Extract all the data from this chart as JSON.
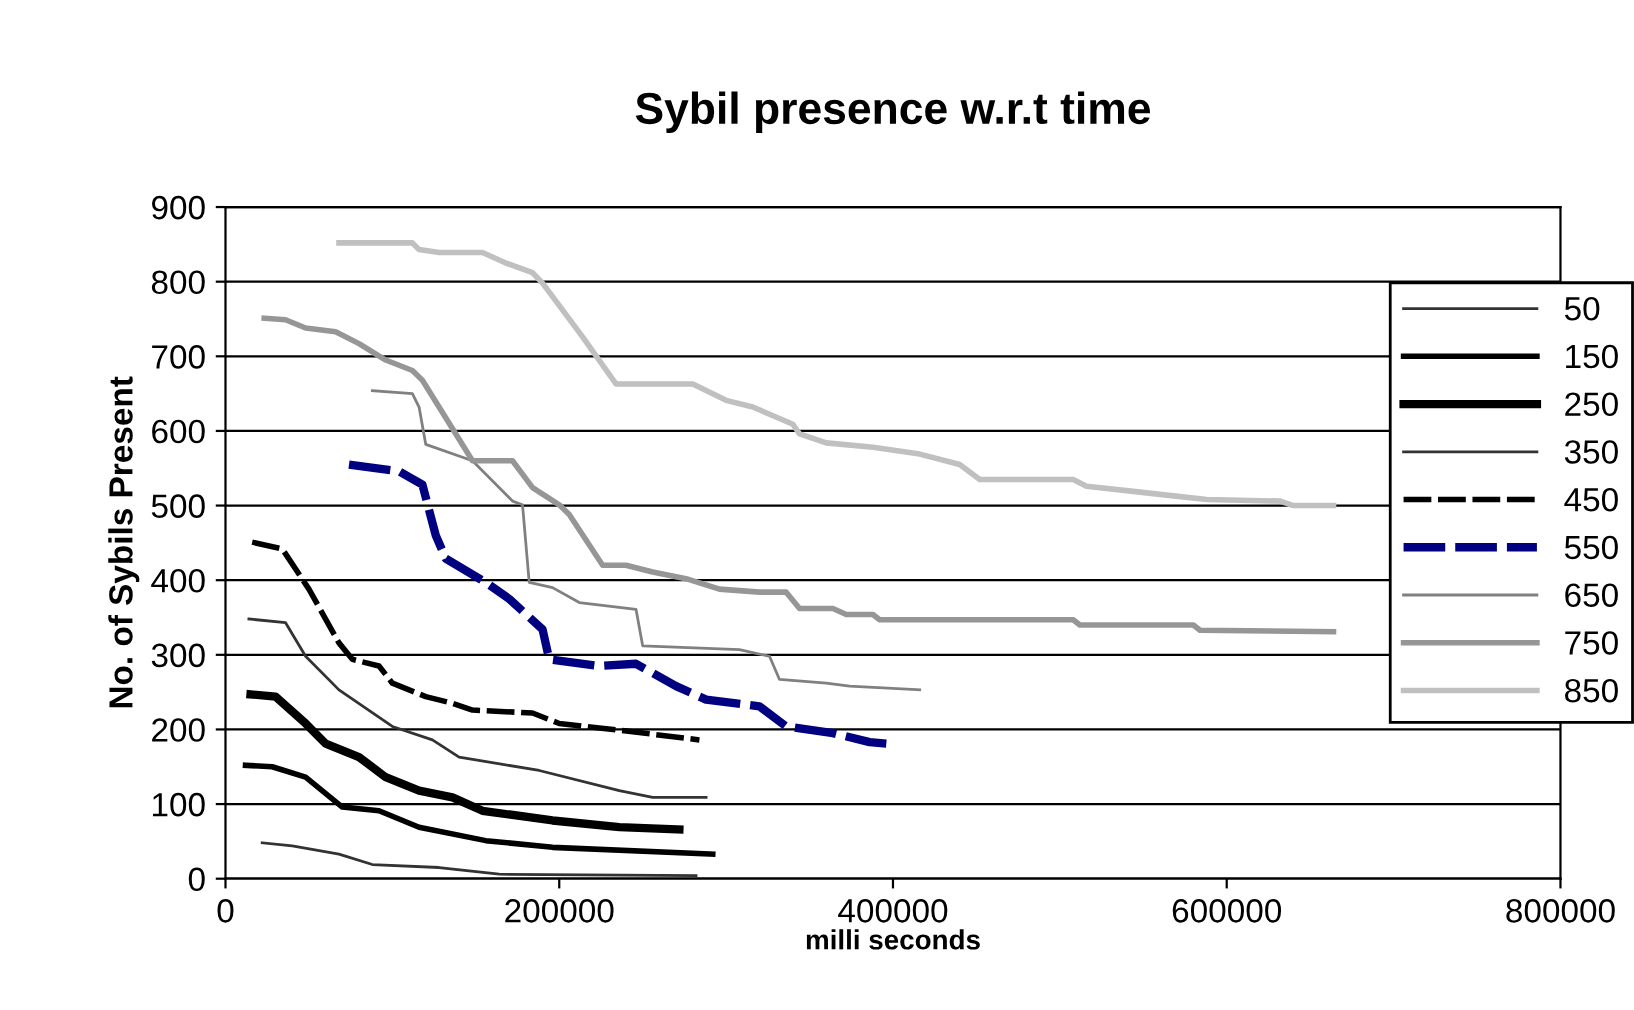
{
  "chart_data": {
    "type": "line",
    "title": "Sybil presence w.r.t time",
    "xlabel": "milli seconds",
    "ylabel": "No. of Sybils Present",
    "xlim": [
      0,
      800000
    ],
    "xticks": [
      0,
      200000,
      400000,
      600000,
      800000
    ],
    "ylim": [
      0,
      900
    ],
    "yticks": [
      0,
      100,
      200,
      300,
      400,
      500,
      600,
      700,
      800,
      900
    ],
    "grid": "y",
    "legend": "right",
    "marker": "none",
    "series": [
      {
        "name": "50",
        "color": "#333333",
        "line_style": "solid",
        "x": [
          22000,
          40000,
          68000,
          88000,
          128000,
          164000,
          282000
        ],
        "values": [
          48,
          44,
          33,
          19,
          15,
          6,
          4
        ]
      },
      {
        "name": "150",
        "color": "#000000",
        "line_style": "solid",
        "x": [
          12000,
          28000,
          48000,
          70000,
          92000,
          116000,
          156000,
          196000,
          292000
        ],
        "values": [
          152,
          150,
          136,
          96,
          91,
          69,
          51,
          42,
          33
        ]
      },
      {
        "name": "250",
        "color": "#000000",
        "line_style": "solid",
        "x": [
          15000,
          30000,
          48000,
          60000,
          80000,
          96000,
          116000,
          136000,
          154000,
          196000,
          236000,
          272000
        ],
        "values": [
          247,
          244,
          208,
          181,
          163,
          136,
          118,
          109,
          91,
          78,
          69,
          66
        ]
      },
      {
        "name": "350",
        "color": "#333333",
        "line_style": "solid",
        "x": [
          14000,
          36000,
          48000,
          68000,
          100000,
          124000,
          140000,
          188000,
          236000,
          256000,
          288000
        ],
        "values": [
          348,
          343,
          298,
          253,
          204,
          186,
          163,
          145,
          118,
          109,
          109
        ]
      },
      {
        "name": "450",
        "color": "#000000",
        "line_style": "dashed",
        "x": [
          16000,
          34000,
          50000,
          68000,
          76000,
          92000,
          100000,
          120000,
          136000,
          148000,
          184000,
          200000,
          236000,
          284000
        ],
        "values": [
          451,
          442,
          388,
          316,
          294,
          285,
          262,
          244,
          235,
          226,
          222,
          208,
          199,
          186
        ]
      },
      {
        "name": "550",
        "color": "#000080",
        "line_style": "dashed",
        "x": [
          74000,
          104000,
          118000,
          126000,
          132000,
          156000,
          170000,
          190000,
          194000,
          224000,
          246000,
          270000,
          288000,
          320000,
          336000,
          364000,
          386000,
          396000
        ],
        "values": [
          555,
          546,
          528,
          460,
          429,
          397,
          375,
          334,
          294,
          285,
          288,
          258,
          240,
          231,
          204,
          195,
          183,
          181
        ]
      },
      {
        "name": "650",
        "color": "#808080",
        "line_style": "solid",
        "x": [
          88000,
          112000,
          116000,
          120000,
          148000,
          172000,
          178000,
          182000,
          196000,
          212000,
          246000,
          250000,
          308000,
          326000,
          332000,
          360000,
          374000,
          416000
        ],
        "values": [
          654,
          650,
          632,
          582,
          560,
          506,
          501,
          397,
          390,
          370,
          361,
          312,
          307,
          298,
          267,
          262,
          258,
          253
        ]
      },
      {
        "name": "750",
        "color": "#969696",
        "line_style": "solid",
        "x": [
          23200,
          36000,
          48000,
          66000,
          80000,
          96000,
          112000,
          118000,
          148000,
          172000,
          184000,
          200000,
          206000,
          226000,
          240000,
          256000,
          276000,
          296000,
          320000,
          336000,
          344000,
          364000,
          372000,
          388000,
          392000,
          508000,
          512000,
          580000,
          584000,
          664000
        ],
        "values": [
          751,
          749,
          738,
          733,
          717,
          695,
          681,
          668,
          560,
          560,
          524,
          501,
          488,
          420,
          420,
          411,
          402,
          388,
          384,
          384,
          362,
          362,
          354,
          354,
          347,
          347,
          340,
          340,
          333,
          331
        ]
      },
      {
        "name": "850",
        "color": "#c0c0c0",
        "line_style": "solid",
        "x": [
          68000,
          112000,
          116000,
          128000,
          154000,
          168000,
          184000,
          190000,
          214000,
          234000,
          280000,
          300000,
          316000,
          340000,
          344000,
          360000,
          388000,
          416000,
          440000,
          452000,
          508000,
          516000,
          544000,
          560000,
          588000,
          632000,
          640000,
          664000
        ],
        "values": [
          852,
          852,
          843,
          839,
          839,
          825,
          812,
          798,
          726,
          663,
          663,
          641,
          632,
          609,
          596,
          584,
          578,
          569,
          555,
          535,
          535,
          526,
          519,
          515,
          508,
          506,
          500,
          500
        ]
      }
    ]
  }
}
